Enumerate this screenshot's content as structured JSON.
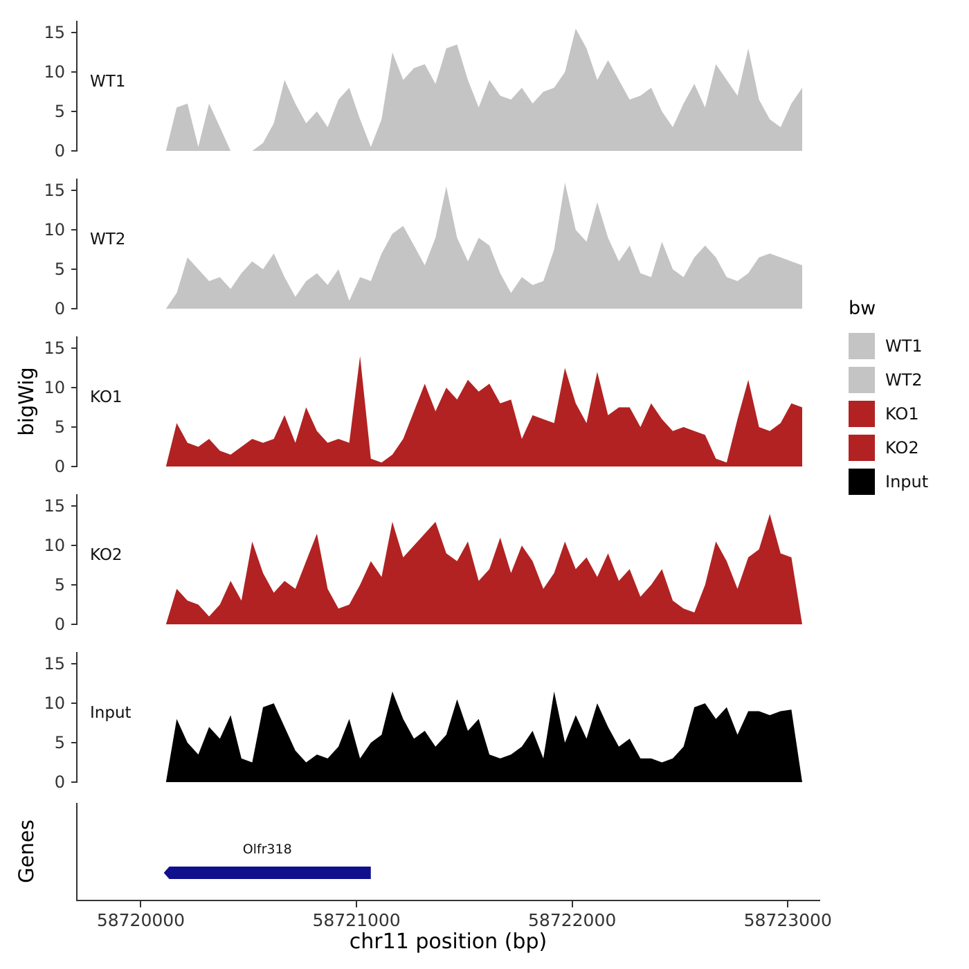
{
  "axes": {
    "y_label": "bigWig",
    "genes_label": "Genes",
    "x_label": "chr11 position (bp)"
  },
  "legend": {
    "title": "bw",
    "entries": [
      {
        "label": "WT1",
        "color": "#c4c4c4"
      },
      {
        "label": "WT2",
        "color": "#c4c4c4"
      },
      {
        "label": "KO1",
        "color": "#b22222"
      },
      {
        "label": "KO2",
        "color": "#b22222"
      },
      {
        "label": "Input",
        "color": "#000000"
      }
    ]
  },
  "chart_data": {
    "type": "area",
    "title": "",
    "xlabel": "chr11 position (bp)",
    "ylabel": "bigWig",
    "x_domain": [
      58719700,
      58723150
    ],
    "x_ticks": [
      "58720000",
      "58721000",
      "58722000",
      "58723000"
    ],
    "y_ticks": [
      15,
      10,
      5,
      0
    ],
    "y_max": 16.5,
    "x_start": 58720110,
    "x_step": 50,
    "series": [
      {
        "key": "WT1",
        "name": "WT1",
        "color": "#c4c4c4",
        "values": [
          0,
          5.5,
          6,
          0.5,
          6,
          3,
          0,
          0,
          0,
          1,
          3.5,
          9,
          6,
          3.5,
          5,
          3,
          6.5,
          8,
          4,
          0.5,
          4,
          12.5,
          9,
          10.5,
          11,
          8.5,
          13,
          13.5,
          9,
          5.5,
          9,
          7,
          6.5,
          8,
          6,
          7.5,
          8,
          10,
          15.5,
          13,
          9,
          11.5,
          9,
          6.5,
          7,
          8,
          5,
          3,
          6,
          8.5,
          5.5,
          11,
          9,
          7,
          13,
          6.5,
          4,
          3,
          6,
          8
        ]
      },
      {
        "key": "WT2",
        "name": "WT2",
        "color": "#c4c4c4",
        "values": [
          0,
          2,
          6.5,
          5,
          3.5,
          4,
          2.5,
          4.5,
          6,
          5,
          7,
          4,
          1.5,
          3.5,
          4.5,
          3,
          5,
          1,
          4,
          3.5,
          7,
          9.5,
          10.5,
          8,
          5.5,
          9,
          15.5,
          9,
          6,
          9,
          8,
          4.5,
          2,
          4,
          3,
          3.5,
          7.5,
          16,
          10,
          8.5,
          13.5,
          9,
          6,
          8,
          4.5,
          4,
          8.5,
          5,
          4,
          6.5,
          8,
          6.5,
          4,
          3.5,
          4.5,
          6.5,
          7,
          6.5,
          6,
          5.5
        ]
      },
      {
        "key": "KO1",
        "name": "KO1",
        "color": "#b22222",
        "values": [
          0,
          5.5,
          3,
          2.5,
          3.5,
          2,
          1.5,
          2.5,
          3.5,
          3,
          3.5,
          6.5,
          3,
          7.5,
          4.5,
          3,
          3.5,
          3,
          14,
          1,
          0.5,
          1.5,
          3.5,
          7,
          10.5,
          7,
          10,
          8.5,
          11,
          9.5,
          10.5,
          8,
          8.5,
          3.5,
          6.5,
          6,
          5.5,
          12.5,
          8,
          5.5,
          12,
          6.5,
          7.5,
          7.5,
          5,
          8,
          6,
          4.5,
          5,
          4.5,
          4,
          1,
          0.5,
          6,
          11,
          5,
          4.5,
          5.5,
          8,
          7.5
        ]
      },
      {
        "key": "KO2",
        "name": "KO2",
        "color": "#b22222",
        "values": [
          0,
          4.5,
          3,
          2.5,
          1,
          2.5,
          5.5,
          3,
          10.5,
          6.5,
          4,
          5.5,
          4.5,
          8,
          11.5,
          4.5,
          2,
          2.5,
          5,
          8,
          6,
          13,
          8.5,
          10,
          11.5,
          13,
          9,
          8,
          10.5,
          5.5,
          7,
          11,
          6.5,
          10,
          8,
          4.5,
          6.5,
          10.5,
          7,
          8.5,
          6,
          9,
          5.5,
          7,
          3.5,
          5,
          7,
          3,
          2,
          1.5,
          5,
          10.5,
          8,
          4.5,
          8.5,
          9.5,
          14,
          9,
          8.5,
          0
        ]
      },
      {
        "key": "Input",
        "name": "Input",
        "color": "#000000",
        "values": [
          0,
          8,
          5,
          3.5,
          7,
          5.5,
          8.5,
          3,
          2.5,
          9.5,
          10,
          7,
          4,
          2.5,
          3.5,
          3,
          4.5,
          8,
          3,
          5,
          6,
          11.5,
          8,
          5.5,
          6.5,
          4.5,
          6,
          10.5,
          6.5,
          8,
          3.5,
          3,
          3.5,
          4.5,
          6.5,
          3,
          11.5,
          5,
          8.5,
          5.5,
          10,
          7,
          4.5,
          5.5,
          3,
          3,
          2.5,
          3,
          4.5,
          9.5,
          10,
          8,
          9.5,
          6,
          9,
          9,
          8.5,
          9,
          9.2,
          0
        ]
      }
    ],
    "genes": [
      {
        "name": "Olfr318",
        "start": 58720100,
        "end": 58721060,
        "strand": "-",
        "color": "#10108d"
      }
    ]
  }
}
